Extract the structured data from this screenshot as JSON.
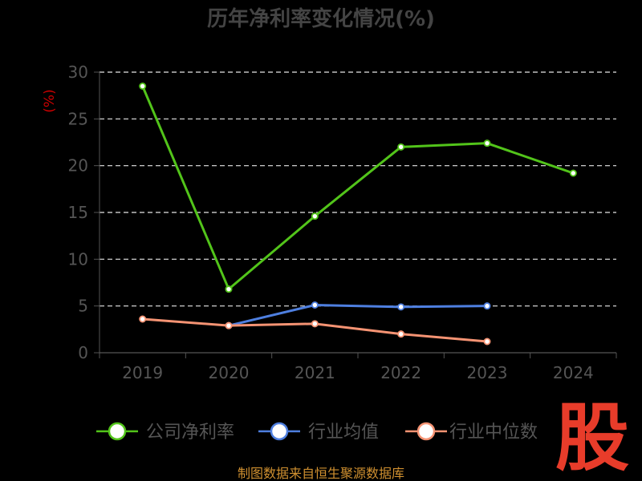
{
  "chart_data": {
    "type": "line",
    "title": "历年净利率变化情况(%)",
    "ylabel": "(%)",
    "xlabel": "",
    "categories": [
      "2019",
      "2020",
      "2021",
      "2022",
      "2023",
      "2024"
    ],
    "ylim": [
      0,
      30
    ],
    "yticks": [
      "0",
      "5",
      "10",
      "15",
      "20",
      "25",
      "30"
    ],
    "grid": true,
    "legend_position": "bottom",
    "series": [
      {
        "name": "公司净利率",
        "color": "#52c41a",
        "values": [
          28.5,
          6.8,
          14.6,
          22.0,
          22.4,
          19.2
        ]
      },
      {
        "name": "行业均值",
        "color": "#4e7fe0",
        "values": [
          null,
          2.9,
          5.1,
          4.9,
          5.0,
          null
        ]
      },
      {
        "name": "行业中位数",
        "color": "#f59373",
        "values": [
          3.6,
          2.9,
          3.1,
          2.0,
          1.2,
          null
        ]
      }
    ]
  },
  "footer": {
    "source": "制图数据来自恒生聚源数据库"
  },
  "logo": {
    "text": "股",
    "color": "#e83c2a"
  }
}
